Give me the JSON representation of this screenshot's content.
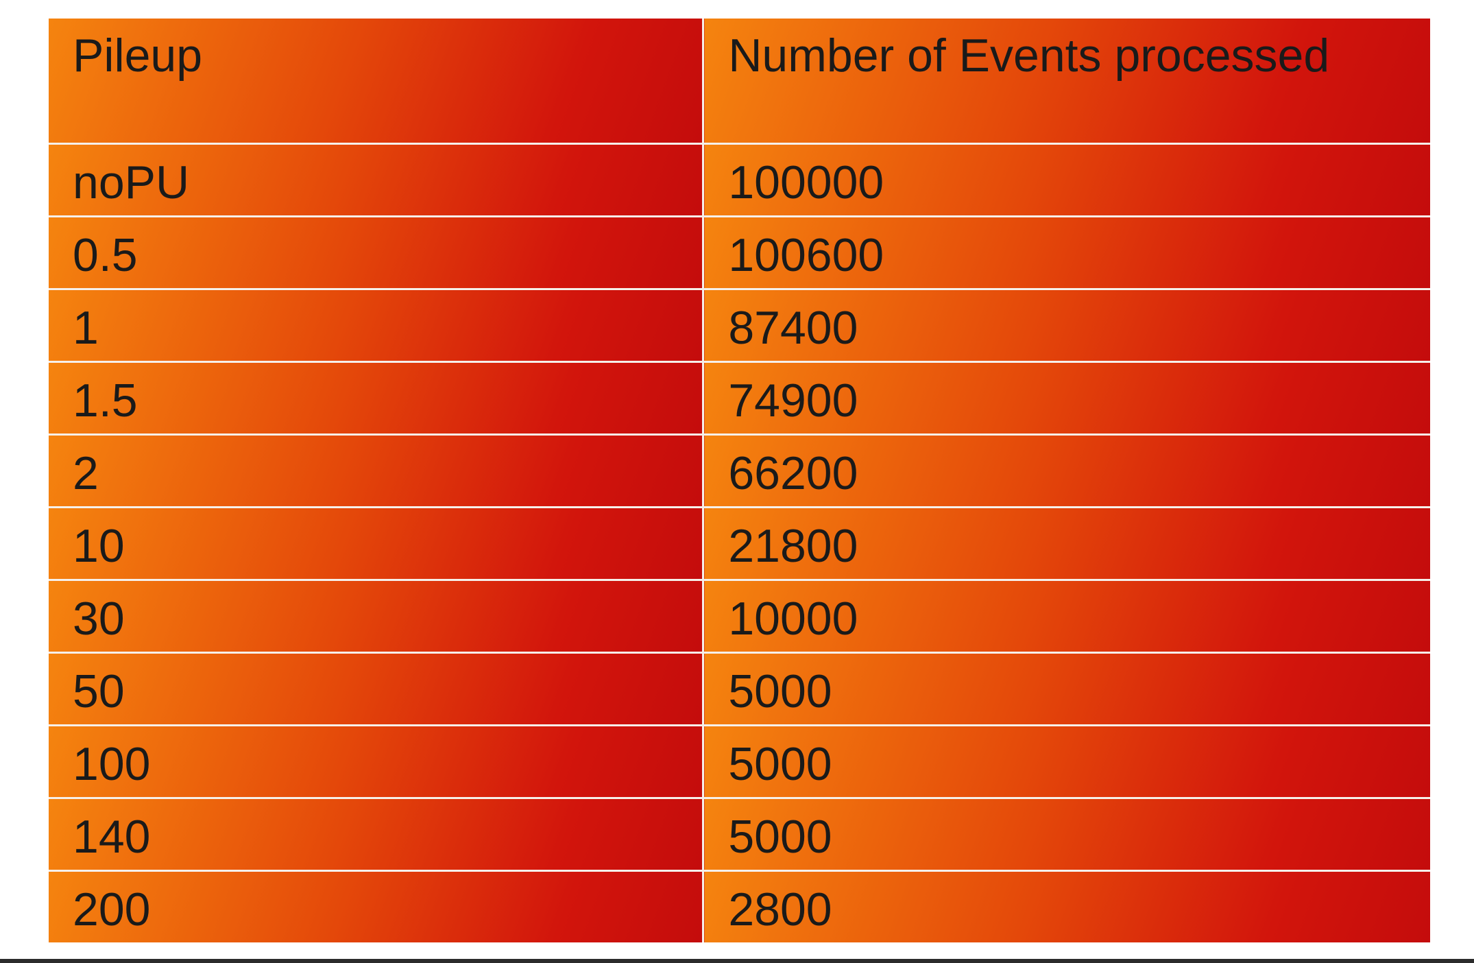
{
  "table": {
    "headers": [
      "Pileup",
      "Number of Events processed"
    ],
    "rows": [
      [
        "noPU",
        "100000"
      ],
      [
        "0.5",
        "100600"
      ],
      [
        "1",
        "87400"
      ],
      [
        "1.5",
        "74900"
      ],
      [
        "2",
        "66200"
      ],
      [
        "10",
        "21800"
      ],
      [
        "30",
        "10000"
      ],
      [
        "50",
        "5000"
      ],
      [
        "100",
        "5000"
      ],
      [
        "140",
        "5000"
      ],
      [
        "200",
        "2800"
      ]
    ]
  },
  "colors": {
    "gradient_start": "#f5840f",
    "gradient_mid": "#e4480a",
    "gradient_end": "#c40c0c",
    "cell_border": "#f6f0ea",
    "text": "#1a1a1a"
  }
}
